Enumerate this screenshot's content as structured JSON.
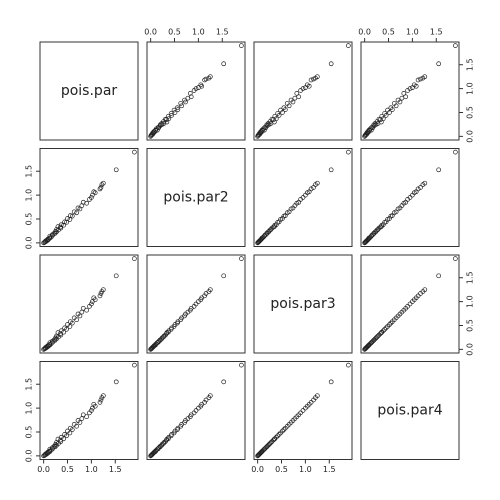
{
  "chart_data": {
    "type": "scatter_matrix",
    "xlim": [
      -0.076,
      1.976
    ],
    "ylim": [
      -0.076,
      1.976
    ],
    "xticks": [
      {
        "value": 0,
        "label": "0.0"
      },
      {
        "value": 0.5,
        "label": "0.5"
      },
      {
        "value": 1,
        "label": "1.0"
      },
      {
        "value": 1.5,
        "label": "1.5"
      }
    ],
    "yticks": [
      {
        "value": 0,
        "label": "0.0"
      },
      {
        "value": 0.5,
        "label": "0.5"
      },
      {
        "value": 1,
        "label": "1.0"
      },
      {
        "value": 1.5,
        "label": "1.5"
      }
    ],
    "marker_color": "#222222",
    "series": [
      {
        "name": "pois.par",
        "values": [
          0.0,
          0.02,
          0.03,
          0.05,
          0.04,
          0.08,
          0.07,
          0.1,
          0.09,
          0.13,
          0.12,
          0.16,
          0.13,
          0.19,
          0.18,
          0.24,
          0.22,
          0.27,
          0.25,
          0.31,
          0.27,
          0.36,
          0.35,
          0.42,
          0.37,
          0.48,
          0.44,
          0.55,
          0.5,
          0.6,
          0.56,
          0.69,
          0.64,
          0.76,
          0.72,
          0.8,
          0.9,
          0.83,
          0.96,
          1.0,
          1.02,
          1.08,
          1.05,
          1.18,
          1.2,
          1.22,
          1.25,
          1.52,
          1.9,
          0.3
        ]
      },
      {
        "name": "pois.par2",
        "values": [
          0.0,
          0.01,
          0.02,
          0.03,
          0.04,
          0.05,
          0.06,
          0.07,
          0.08,
          0.1,
          0.1,
          0.12,
          0.14,
          0.16,
          0.17,
          0.2,
          0.2,
          0.23,
          0.24,
          0.27,
          0.28,
          0.31,
          0.33,
          0.37,
          0.38,
          0.43,
          0.44,
          0.49,
          0.51,
          0.56,
          0.57,
          0.63,
          0.65,
          0.71,
          0.73,
          0.78,
          0.83,
          0.85,
          0.91,
          0.95,
          1.0,
          1.05,
          1.07,
          1.13,
          1.16,
          1.22,
          1.25,
          1.53,
          1.9,
          0.34
        ]
      },
      {
        "name": "pois.par3",
        "values": [
          0.0,
          0.01,
          0.02,
          0.03,
          0.04,
          0.05,
          0.06,
          0.07,
          0.08,
          0.09,
          0.1,
          0.12,
          0.14,
          0.15,
          0.17,
          0.19,
          0.2,
          0.22,
          0.24,
          0.26,
          0.28,
          0.3,
          0.33,
          0.36,
          0.39,
          0.42,
          0.45,
          0.48,
          0.52,
          0.55,
          0.58,
          0.62,
          0.66,
          0.7,
          0.74,
          0.78,
          0.82,
          0.86,
          0.9,
          0.95,
          1.0,
          1.04,
          1.08,
          1.12,
          1.17,
          1.21,
          1.25,
          1.54,
          1.9,
          0.35
        ]
      },
      {
        "name": "pois.par4",
        "values": [
          0.0,
          0.01,
          0.02,
          0.03,
          0.04,
          0.05,
          0.06,
          0.07,
          0.08,
          0.09,
          0.1,
          0.12,
          0.14,
          0.15,
          0.17,
          0.19,
          0.2,
          0.22,
          0.24,
          0.26,
          0.28,
          0.3,
          0.33,
          0.36,
          0.39,
          0.42,
          0.45,
          0.48,
          0.52,
          0.55,
          0.58,
          0.62,
          0.66,
          0.7,
          0.74,
          0.78,
          0.82,
          0.86,
          0.9,
          0.95,
          1.0,
          1.04,
          1.08,
          1.12,
          1.17,
          1.22,
          1.26,
          1.55,
          1.9,
          0.35
        ]
      }
    ]
  }
}
